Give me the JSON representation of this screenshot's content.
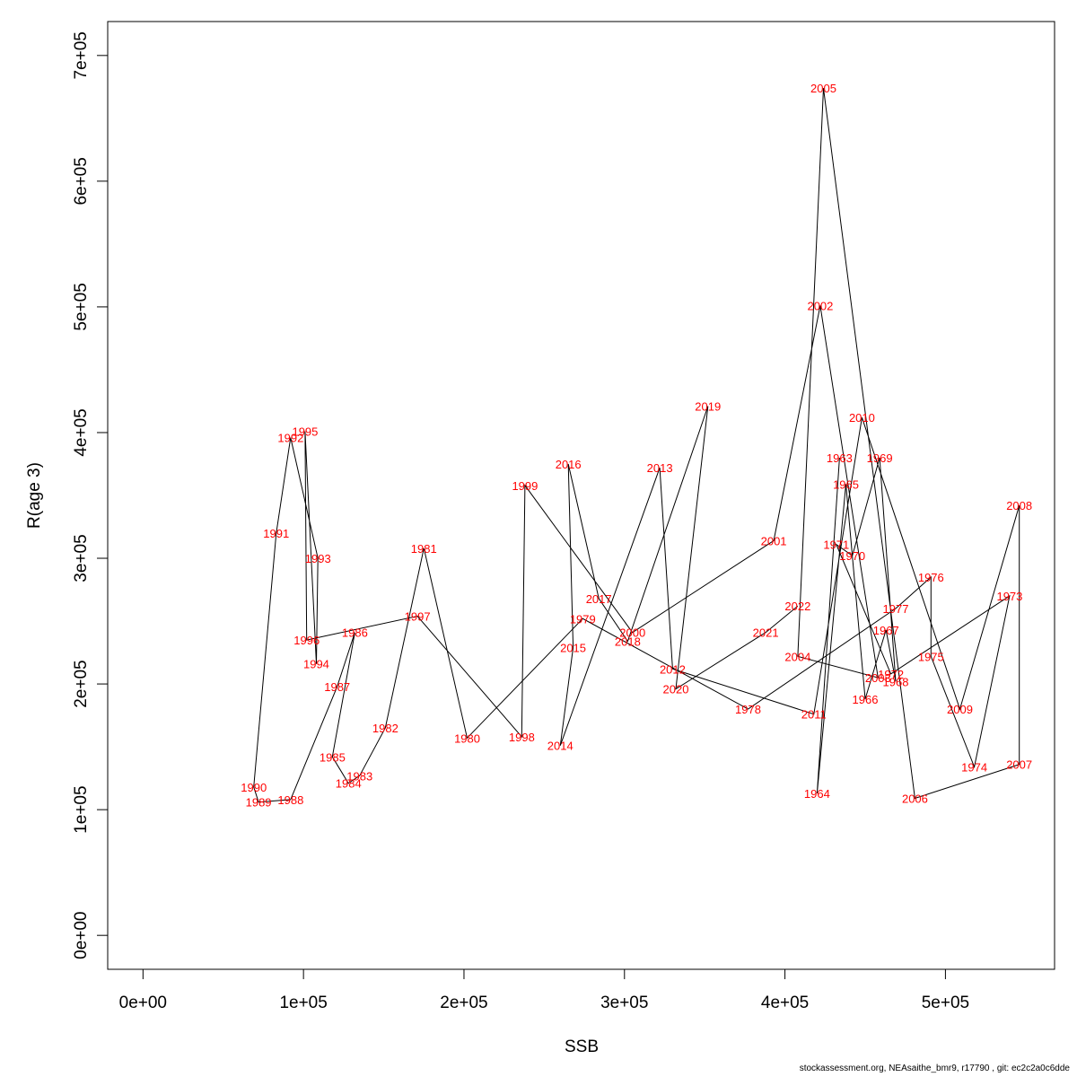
{
  "chart_data": {
    "type": "line",
    "xlabel": "SSB",
    "ylabel": "R(age 3)",
    "xlim": [
      -22000,
      568000
    ],
    "ylim": [
      -27000,
      727000
    ],
    "x_ticks": [
      0,
      100000,
      200000,
      300000,
      400000,
      500000
    ],
    "x_tick_labels": [
      "0e+00",
      "1e+05",
      "2e+05",
      "3e+05",
      "4e+05",
      "5e+05"
    ],
    "y_ticks": [
      0,
      100000,
      200000,
      300000,
      400000,
      500000,
      600000,
      700000
    ],
    "y_tick_labels": [
      "0e+00",
      "1e+05",
      "2e+05",
      "3e+05",
      "4e+05",
      "5e+05",
      "6e+05",
      "7e+05"
    ],
    "grid": false,
    "line_color": "#000000",
    "label_color": "#ff0000",
    "points": [
      {
        "year": "1963",
        "ssb": 434000,
        "r": 380000
      },
      {
        "year": "1964",
        "ssb": 420000,
        "r": 113000
      },
      {
        "year": "1965",
        "ssb": 438000,
        "r": 359000
      },
      {
        "year": "1966",
        "ssb": 450000,
        "r": 188000
      },
      {
        "year": "1967",
        "ssb": 463000,
        "r": 243000
      },
      {
        "year": "1968",
        "ssb": 469000,
        "r": 202000
      },
      {
        "year": "1969",
        "ssb": 459000,
        "r": 380000
      },
      {
        "year": "1970",
        "ssb": 442000,
        "r": 302000
      },
      {
        "year": "1971",
        "ssb": 432000,
        "r": 311000
      },
      {
        "year": "1972",
        "ssb": 466000,
        "r": 208000
      },
      {
        "year": "1973",
        "ssb": 540000,
        "r": 270000
      },
      {
        "year": "1974",
        "ssb": 518000,
        "r": 134000
      },
      {
        "year": "1975",
        "ssb": 491000,
        "r": 222000
      },
      {
        "year": "1976",
        "ssb": 491000,
        "r": 285000
      },
      {
        "year": "1977",
        "ssb": 469000,
        "r": 260000
      },
      {
        "year": "1978",
        "ssb": 377000,
        "r": 180000
      },
      {
        "year": "1979",
        "ssb": 274000,
        "r": 252000
      },
      {
        "year": "1980",
        "ssb": 202000,
        "r": 157000
      },
      {
        "year": "1981",
        "ssb": 175000,
        "r": 308000
      },
      {
        "year": "1982",
        "ssb": 151000,
        "r": 165000
      },
      {
        "year": "1983",
        "ssb": 135000,
        "r": 127000
      },
      {
        "year": "1984",
        "ssb": 128000,
        "r": 121000
      },
      {
        "year": "1985",
        "ssb": 118000,
        "r": 142000
      },
      {
        "year": "1986",
        "ssb": 132000,
        "r": 241000
      },
      {
        "year": "1987",
        "ssb": 121000,
        "r": 198000
      },
      {
        "year": "1988",
        "ssb": 92000,
        "r": 108000
      },
      {
        "year": "1989",
        "ssb": 72000,
        "r": 106000
      },
      {
        "year": "1990",
        "ssb": 69000,
        "r": 118000
      },
      {
        "year": "1991",
        "ssb": 83000,
        "r": 320000
      },
      {
        "year": "1992",
        "ssb": 92000,
        "r": 396000
      },
      {
        "year": "1993",
        "ssb": 109000,
        "r": 300000
      },
      {
        "year": "1994",
        "ssb": 108000,
        "r": 216000
      },
      {
        "year": "1995",
        "ssb": 101000,
        "r": 401000
      },
      {
        "year": "1996",
        "ssb": 102000,
        "r": 235000
      },
      {
        "year": "1997",
        "ssb": 171000,
        "r": 254000
      },
      {
        "year": "1998",
        "ssb": 236000,
        "r": 158000
      },
      {
        "year": "1999",
        "ssb": 238000,
        "r": 358000
      },
      {
        "year": "2000",
        "ssb": 305000,
        "r": 241000
      },
      {
        "year": "2001",
        "ssb": 393000,
        "r": 314000
      },
      {
        "year": "2002",
        "ssb": 422000,
        "r": 501000
      },
      {
        "year": "2003",
        "ssb": 458000,
        "r": 205000
      },
      {
        "year": "2004",
        "ssb": 408000,
        "r": 222000
      },
      {
        "year": "2005",
        "ssb": 424000,
        "r": 674000
      },
      {
        "year": "2006",
        "ssb": 481000,
        "r": 109000
      },
      {
        "year": "2007",
        "ssb": 546000,
        "r": 136000
      },
      {
        "year": "2008",
        "ssb": 546000,
        "r": 342000
      },
      {
        "year": "2009",
        "ssb": 509000,
        "r": 180000
      },
      {
        "year": "2010",
        "ssb": 448000,
        "r": 412000
      },
      {
        "year": "2011",
        "ssb": 418000,
        "r": 176000
      },
      {
        "year": "2012",
        "ssb": 330000,
        "r": 212000
      },
      {
        "year": "2013",
        "ssb": 322000,
        "r": 372000
      },
      {
        "year": "2014",
        "ssb": 260000,
        "r": 151000
      },
      {
        "year": "2015",
        "ssb": 268000,
        "r": 229000
      },
      {
        "year": "2016",
        "ssb": 265000,
        "r": 375000
      },
      {
        "year": "2017",
        "ssb": 284000,
        "r": 268000
      },
      {
        "year": "2018",
        "ssb": 302000,
        "r": 234000
      },
      {
        "year": "2019",
        "ssb": 352000,
        "r": 421000
      },
      {
        "year": "2020",
        "ssb": 332000,
        "r": 196000
      },
      {
        "year": "2021",
        "ssb": 388000,
        "r": 241000
      },
      {
        "year": "2022",
        "ssb": 408000,
        "r": 262000
      }
    ]
  },
  "footer": {
    "text": "stockassessment.org, NEAsaithe_bmr9, r17790 , git: ec2c2a0c6dde"
  }
}
